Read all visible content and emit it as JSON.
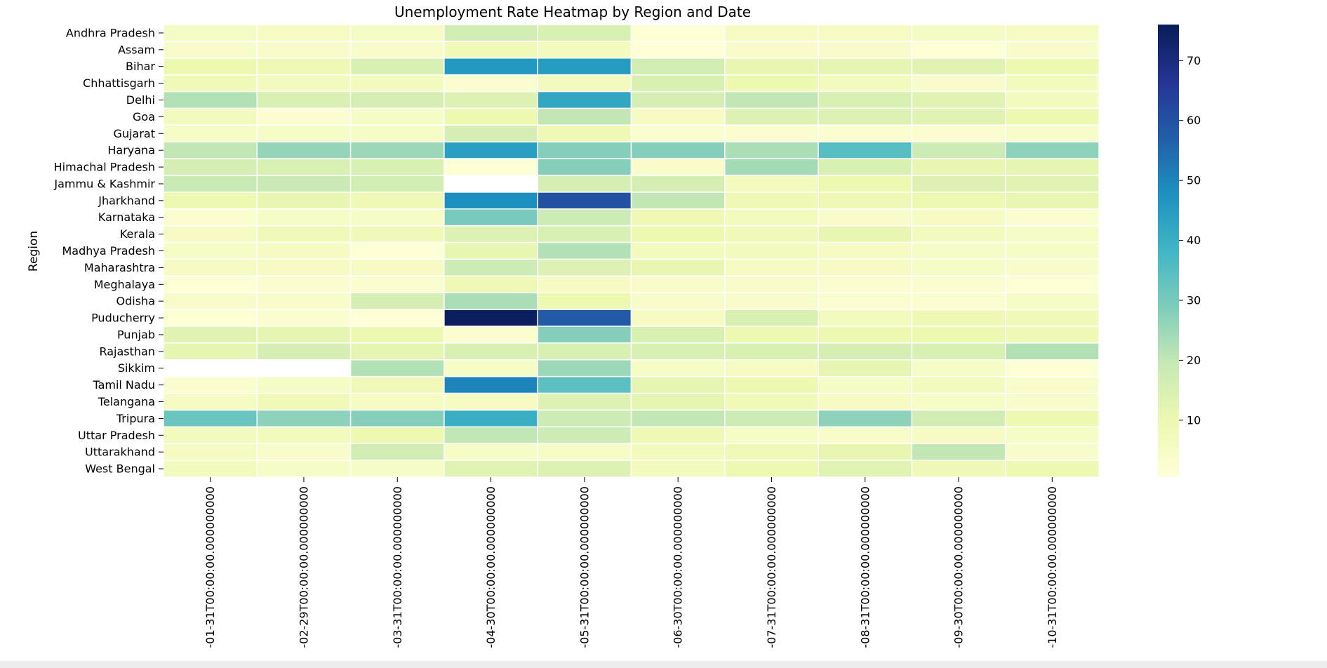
{
  "chart_data": {
    "type": "heatmap",
    "title": "Unemployment Rate Heatmap by Region and Date",
    "ylabel": "Region",
    "xlabel": "",
    "y_categories": [
      "Andhra Pradesh",
      "Assam",
      "Bihar",
      "Chhattisgarh",
      "Delhi",
      "Goa",
      "Gujarat",
      "Haryana",
      "Himachal Pradesh",
      "Jammu & Kashmir",
      "Jharkhand",
      "Karnataka",
      "Kerala",
      "Madhya Pradesh",
      "Maharashtra",
      "Meghalaya",
      "Odisha",
      "Puducherry",
      "Punjab",
      "Rajasthan",
      "Sikkim",
      "Tamil Nadu",
      "Telangana",
      "Tripura",
      "Uttar Pradesh",
      "Uttarakhand",
      "West Bengal"
    ],
    "x_categories": [
      "-01-31T00:00:00.000000000",
      "-02-29T00:00:00.000000000",
      "-03-31T00:00:00.000000000",
      "-04-30T00:00:00.000000000",
      "-05-31T00:00:00.000000000",
      "-06-30T00:00:00.000000000",
      "-07-31T00:00:00.000000000",
      "-08-31T00:00:00.000000000",
      "-09-30T00:00:00.000000000",
      "-10-31T00:00:00.000000000"
    ],
    "values": [
      [
        5.5,
        5.8,
        5.5,
        17,
        15,
        2,
        6,
        6,
        5.5,
        6
      ],
      [
        4,
        4,
        4,
        8,
        7,
        1,
        4,
        4,
        2,
        4
      ],
      [
        10,
        9,
        15,
        46,
        45,
        17,
        11,
        12,
        13,
        10
      ],
      [
        8,
        7,
        7,
        3,
        7,
        15,
        10,
        7,
        4,
        7
      ],
      [
        22,
        15,
        16,
        14,
        42,
        16,
        20,
        15,
        13,
        7
      ],
      [
        7,
        3,
        5,
        10,
        20,
        6,
        14,
        14,
        13,
        10
      ],
      [
        5,
        5,
        5,
        16,
        9,
        3,
        3,
        3,
        3,
        4
      ],
      [
        20,
        26,
        25,
        44,
        28,
        28,
        23,
        35,
        18,
        27
      ],
      [
        16,
        15,
        15,
        2,
        28,
        4,
        24,
        15,
        11,
        12
      ],
      [
        19,
        19,
        17,
        null,
        16,
        16,
        7,
        10,
        14,
        13
      ],
      [
        10,
        11,
        9,
        48,
        60,
        20,
        9,
        9,
        10,
        11
      ],
      [
        3,
        5,
        5,
        30,
        18,
        9,
        7,
        4,
        6,
        3
      ],
      [
        6,
        8,
        8,
        14,
        15,
        10,
        8,
        11,
        7,
        5
      ],
      [
        5,
        6,
        2,
        11,
        22,
        7,
        7,
        6,
        5,
        5
      ],
      [
        6,
        6,
        6,
        18,
        14,
        11,
        6,
        6,
        5,
        4
      ],
      [
        2,
        3,
        3,
        9,
        6,
        4,
        4,
        3,
        3,
        2
      ],
      [
        4,
        4,
        16,
        23,
        10,
        4,
        4,
        3,
        3,
        5
      ],
      [
        2,
        3,
        2,
        75,
        58,
        6,
        15,
        7,
        9,
        8
      ],
      [
        13,
        12,
        10,
        3,
        28,
        15,
        10,
        10,
        10,
        9
      ],
      [
        12,
        16,
        12,
        15,
        15,
        15,
        15,
        16,
        15,
        22
      ],
      [
        null,
        null,
        22,
        5,
        25,
        5,
        6,
        12,
        5,
        2
      ],
      [
        3,
        5,
        8,
        50,
        34,
        12,
        10,
        5,
        7,
        4
      ],
      [
        6,
        8,
        6,
        6,
        14,
        12,
        8,
        6,
        5,
        4
      ],
      [
        32,
        27,
        28,
        40,
        18,
        20,
        18,
        27,
        17,
        10
      ],
      [
        7,
        7,
        10,
        20,
        18,
        9,
        5,
        4,
        6,
        5
      ],
      [
        6,
        4,
        17,
        5,
        5,
        7,
        8,
        11,
        20,
        4
      ],
      [
        7,
        5,
        5,
        13,
        14,
        7,
        10,
        13,
        8,
        10
      ]
    ],
    "colorbar": {
      "min": 0.5,
      "max": 76,
      "ticks": [
        10,
        20,
        30,
        40,
        50,
        60,
        70
      ]
    },
    "colormap": "YlGnBu",
    "grid": true
  }
}
